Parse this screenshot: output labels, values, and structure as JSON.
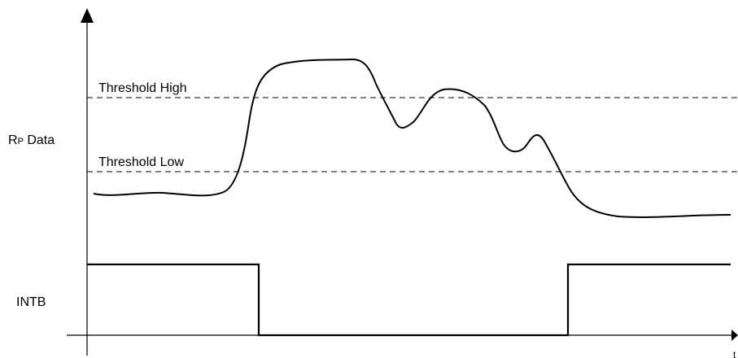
{
  "labels": {
    "threshold_high": "Threshold High",
    "threshold_low": "Threshold Low",
    "rp_data_main": "R",
    "rp_data_sub": "P",
    "rp_data_rest": " Data",
    "intb": "INTB",
    "time_axis": "t"
  },
  "colors": {
    "line": "#000000",
    "background": "#ffffff"
  }
}
